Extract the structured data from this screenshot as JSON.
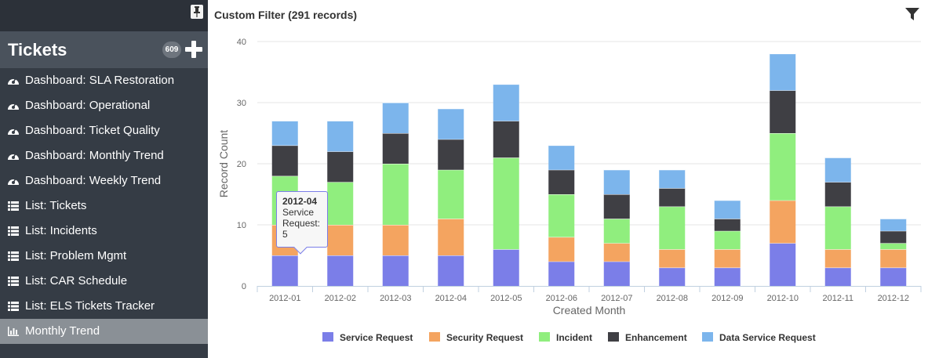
{
  "sidebar": {
    "title": "Tickets",
    "count_badge": "609",
    "items": [
      {
        "label": "Dashboard: SLA Restoration",
        "icon": "dashboard-icon",
        "name": "sidebar-item-dashboard-sla-restoration"
      },
      {
        "label": "Dashboard: Operational",
        "icon": "dashboard-icon",
        "name": "sidebar-item-dashboard-operational"
      },
      {
        "label": "Dashboard: Ticket Quality",
        "icon": "dashboard-icon",
        "name": "sidebar-item-dashboard-ticket-quality"
      },
      {
        "label": "Dashboard: Monthly Trend",
        "icon": "dashboard-icon",
        "name": "sidebar-item-dashboard-monthly-trend"
      },
      {
        "label": "Dashboard: Weekly Trend",
        "icon": "dashboard-icon",
        "name": "sidebar-item-dashboard-weekly-trend"
      },
      {
        "label": "List: Tickets",
        "icon": "list-icon",
        "name": "sidebar-item-list-tickets"
      },
      {
        "label": "List: Incidents",
        "icon": "list-icon",
        "name": "sidebar-item-list-incidents"
      },
      {
        "label": "List: Problem Mgmt",
        "icon": "list-icon",
        "name": "sidebar-item-list-problem-mgmt"
      },
      {
        "label": "List: CAR Schedule",
        "icon": "list-icon",
        "name": "sidebar-item-list-car-schedule"
      },
      {
        "label": "List: ELS Tickets Tracker",
        "icon": "list-icon",
        "name": "sidebar-item-list-els-tickets-tracker"
      },
      {
        "label": "Monthly Trend",
        "icon": "bar-chart-icon",
        "name": "sidebar-item-monthly-trend",
        "active": true
      }
    ]
  },
  "main": {
    "title": "Custom Filter (291 records)"
  },
  "tooltip": {
    "heading": "2012-04",
    "series": "Service Request:",
    "value": "5"
  },
  "chart_data": {
    "type": "bar",
    "stacked": true,
    "categories": [
      "2012-01",
      "2012-02",
      "2012-03",
      "2012-04",
      "2012-05",
      "2012-06",
      "2012-07",
      "2012-08",
      "2012-09",
      "2012-10",
      "2012-11",
      "2012-12"
    ],
    "series": [
      {
        "name": "Service Request",
        "color": "#7b7ee8",
        "values": [
          5,
          5,
          5,
          5,
          6,
          4,
          4,
          3,
          3,
          7,
          3,
          3
        ]
      },
      {
        "name": "Security Request",
        "color": "#f4a460",
        "values": [
          5,
          5,
          5,
          6,
          0,
          4,
          3,
          3,
          3,
          7,
          3,
          3
        ]
      },
      {
        "name": "Incident",
        "color": "#90ee7e",
        "values": [
          8,
          7,
          10,
          8,
          15,
          7,
          4,
          7,
          3,
          11,
          7,
          1
        ]
      },
      {
        "name": "Enhancement",
        "color": "#3f3f44",
        "values": [
          5,
          5,
          5,
          5,
          6,
          4,
          4,
          3,
          2,
          7,
          4,
          2
        ]
      },
      {
        "name": "Data Service Request",
        "color": "#7cb5ec",
        "values": [
          4,
          5,
          5,
          5,
          6,
          4,
          4,
          3,
          3,
          6,
          4,
          2
        ]
      }
    ],
    "xlabel": "Created Month",
    "ylabel": "Record Count",
    "yticks": [
      0,
      10,
      20,
      30,
      40
    ],
    "ylim": [
      0,
      40
    ],
    "grid": true,
    "legend": "bottom"
  }
}
